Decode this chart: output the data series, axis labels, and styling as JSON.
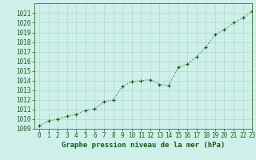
{
  "x": [
    0,
    1,
    2,
    3,
    4,
    5,
    6,
    7,
    8,
    9,
    10,
    11,
    12,
    13,
    14,
    15,
    16,
    17,
    18,
    19,
    20,
    21,
    22,
    23
  ],
  "y": [
    1009.3,
    1009.8,
    1010.0,
    1010.3,
    1010.5,
    1010.9,
    1011.1,
    1011.8,
    1012.0,
    1013.4,
    1013.9,
    1014.0,
    1014.1,
    1013.6,
    1013.5,
    1015.4,
    1015.7,
    1016.5,
    1017.5,
    1018.8,
    1019.3,
    1020.0,
    1020.5,
    1021.2
  ],
  "ylim": [
    1009,
    1022
  ],
  "xlim": [
    -0.5,
    23
  ],
  "yticks": [
    1009,
    1010,
    1011,
    1012,
    1013,
    1014,
    1015,
    1016,
    1017,
    1018,
    1019,
    1020,
    1021
  ],
  "xticks": [
    0,
    1,
    2,
    3,
    4,
    5,
    6,
    7,
    8,
    9,
    10,
    11,
    12,
    13,
    14,
    15,
    16,
    17,
    18,
    19,
    20,
    21,
    22,
    23
  ],
  "line_color": "#1a5c1a",
  "marker_color": "#1a5c1a",
  "bg_color": "#cff0ea",
  "grid_color": "#aaddcc",
  "xlabel": "Graphe pression niveau de la mer (hPa)",
  "xlabel_fontsize": 6.5,
  "tick_fontsize": 5.5,
  "ytick_fontsize": 5.5
}
